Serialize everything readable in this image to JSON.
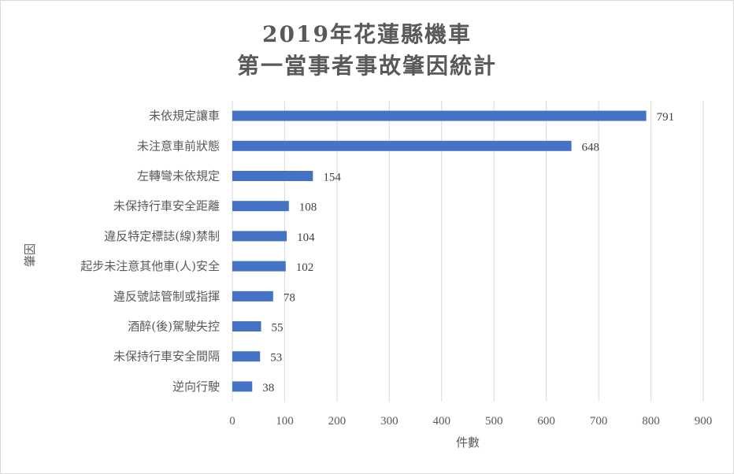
{
  "chart_data": {
    "type": "bar",
    "orientation": "horizontal",
    "title_line1": "2019年花蓮縣機車",
    "title_line2": "第一當事者事故肇因統計",
    "xlabel": "件數",
    "ylabel": "肇因",
    "categories": [
      "未依規定讓車",
      "未注意車前狀態",
      "左轉彎未依規定",
      "未保持行車安全距離",
      "違反特定標誌(線)禁制",
      "起步未注意其他車(人)安全",
      "違反號誌管制或指揮",
      "酒醉(後)駕駛失控",
      "未保持行車安全間隔",
      "逆向行駛"
    ],
    "values": [
      791,
      648,
      154,
      108,
      104,
      102,
      78,
      55,
      53,
      38
    ],
    "xlim": [
      0,
      900
    ],
    "xticks": [
      0,
      100,
      200,
      300,
      400,
      500,
      600,
      700,
      800,
      900
    ],
    "grid": true,
    "data_labels": true,
    "bar_color": "#4472c4",
    "grid_color": "#d9d9d9"
  }
}
